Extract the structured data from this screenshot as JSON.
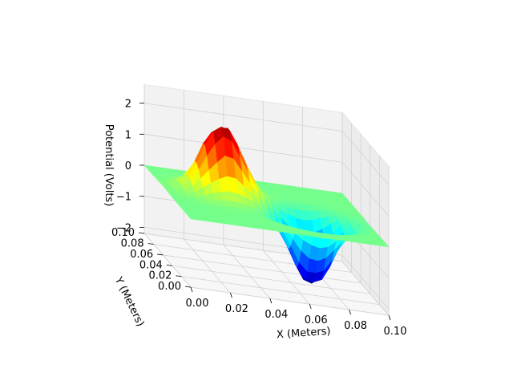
{
  "chart_data": {
    "type": "surface",
    "xlabel": "X (Meters)",
    "ylabel": "Y (Meters)",
    "zlabel": "Potential (Volts)",
    "x_ticks": [
      "0.00",
      "0.02",
      "0.04",
      "0.06",
      "0.08",
      "0.10"
    ],
    "y_ticks": [
      "0.00",
      "0.02",
      "0.04",
      "0.06",
      "0.08",
      "0.10"
    ],
    "z_ticks": [
      "−2",
      "−1",
      "0",
      "1",
      "2"
    ],
    "xlim": [
      0,
      0.1
    ],
    "ylim": [
      0,
      0.1
    ],
    "zlim": [
      -2.2,
      2.6
    ],
    "grid": true,
    "colormap": "jet",
    "surface": {
      "description_free_model": true,
      "positive_peak": {
        "x": 0.03,
        "y": 0.06,
        "z": 2.3
      },
      "negative_peak": {
        "x": 0.07,
        "y": 0.04,
        "z": -2.2
      },
      "baseline_z": 0,
      "grid_n": 24
    }
  }
}
